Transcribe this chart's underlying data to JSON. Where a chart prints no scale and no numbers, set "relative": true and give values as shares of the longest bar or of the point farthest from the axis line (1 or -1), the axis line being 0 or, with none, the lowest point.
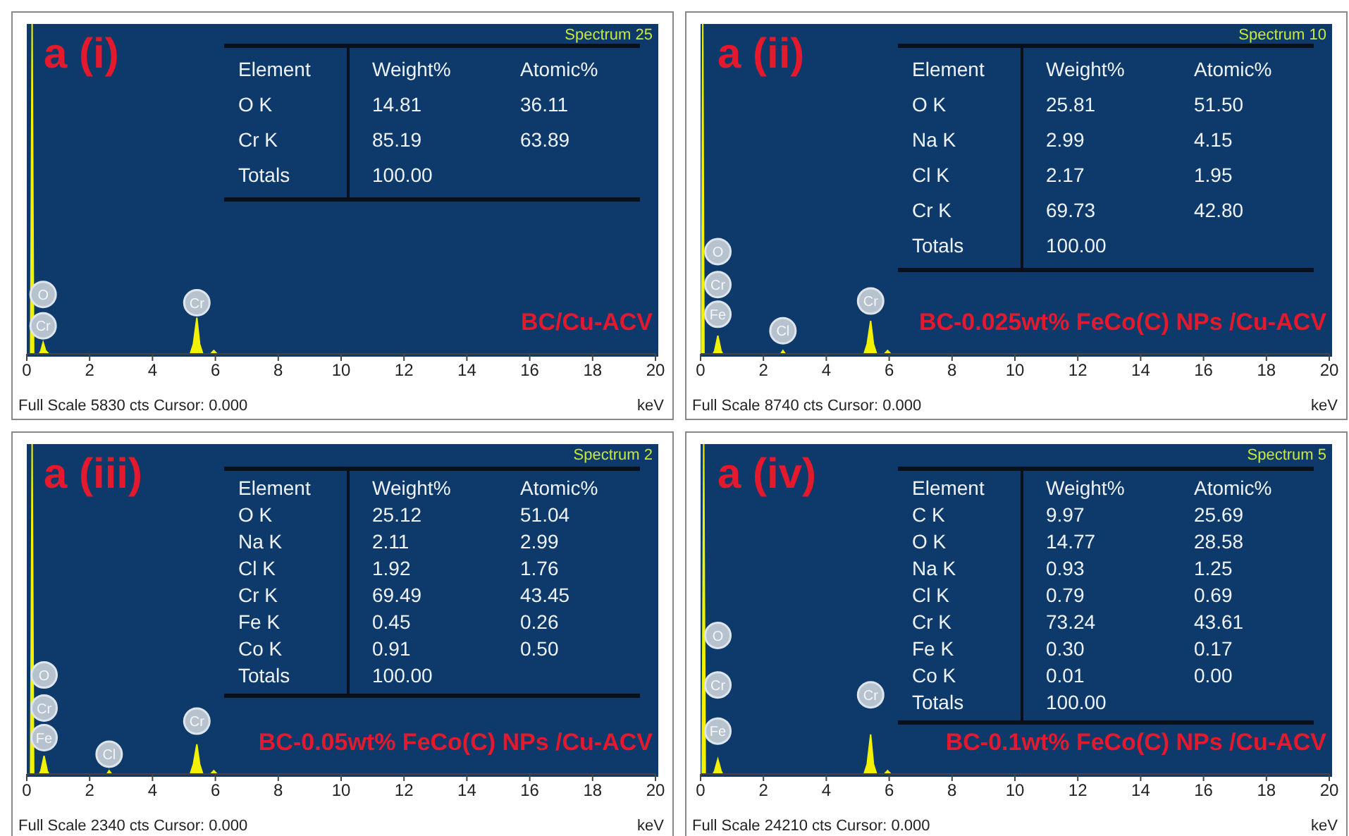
{
  "chart_data": [
    {
      "type": "area",
      "title": "a (i)",
      "xlabel": "keV",
      "relative": true,
      "color": "#f2f200",
      "xlim": [
        0,
        20
      ],
      "xticks": [
        0,
        2,
        4,
        6,
        8,
        10,
        12,
        14,
        16,
        18,
        20
      ],
      "x": [
        0,
        0.12,
        0.17,
        0.22,
        0.4,
        0.45,
        0.52,
        0.6,
        0.7,
        5.2,
        5.3,
        5.41,
        5.5,
        5.6,
        5.85,
        5.95,
        6.05,
        20
      ],
      "values": [
        0,
        0,
        1,
        0,
        0,
        0.01,
        0.035,
        0.01,
        0,
        0,
        0.03,
        0.11,
        0.03,
        0,
        0,
        0.01,
        0,
        0
      ],
      "annotations": [
        "Spectrum 25",
        "BC/Cu-ACV",
        "Full Scale 5830 cts Cursor: 0.000",
        {
          "text": "O",
          "x": 0.52,
          "y": 0.18
        },
        {
          "text": "Cr",
          "x": 0.52,
          "y": 0.085
        },
        {
          "text": "Cr",
          "x": 5.41,
          "y": 0.155
        },
        "Element",
        "Weight%",
        "Atomic%",
        "O K",
        "14.81",
        "36.11",
        "Cr K",
        "85.19",
        "63.89",
        "Totals",
        "100.00"
      ]
    },
    {
      "type": "area",
      "title": "a (ii)",
      "xlabel": "keV",
      "relative": true,
      "color": "#f2f200",
      "xlim": [
        0,
        20
      ],
      "xticks": [
        0,
        2,
        4,
        6,
        8,
        10,
        12,
        14,
        16,
        18,
        20
      ],
      "x": [
        0,
        0.03,
        0.07,
        0.11,
        0.4,
        0.45,
        0.55,
        0.65,
        0.7,
        2.55,
        2.62,
        2.7,
        5.2,
        5.3,
        5.41,
        5.5,
        5.6,
        5.85,
        5.95,
        6.05,
        20
      ],
      "values": [
        0,
        0,
        1,
        0,
        0,
        0.01,
        0.055,
        0.01,
        0,
        0,
        0.01,
        0,
        0,
        0.03,
        0.1,
        0.03,
        0,
        0,
        0.01,
        0,
        0
      ],
      "annotations": [
        "Spectrum 10",
        "BC-0.025wt% FeCo(C) NPs /Cu-ACV",
        "Full Scale 8740 cts Cursor: 0.000",
        {
          "text": "O",
          "x": 0.55,
          "y": 0.31
        },
        {
          "text": "Cr",
          "x": 0.55,
          "y": 0.21
        },
        {
          "text": "Fe",
          "x": 0.55,
          "y": 0.12
        },
        {
          "text": "Cl",
          "x": 2.62,
          "y": 0.07
        },
        {
          "text": "Cr",
          "x": 5.41,
          "y": 0.16
        },
        "Element",
        "Weight%",
        "Atomic%",
        "O K",
        "25.81",
        "51.50",
        "Na K",
        "2.99",
        "4.15",
        "Cl K",
        "2.17",
        "1.95",
        "Cr K",
        "69.73",
        "42.80",
        "Totals",
        "100.00"
      ]
    },
    {
      "type": "area",
      "title": "a (iii)",
      "xlabel": "keV",
      "relative": true,
      "color": "#f2f200",
      "xlim": [
        0,
        20
      ],
      "xticks": [
        0,
        2,
        4,
        6,
        8,
        10,
        12,
        14,
        16,
        18,
        20
      ],
      "x": [
        0,
        0.12,
        0.17,
        0.22,
        0.4,
        0.45,
        0.55,
        0.65,
        0.7,
        2.55,
        2.62,
        2.7,
        5.2,
        5.3,
        5.41,
        5.5,
        5.6,
        5.85,
        5.95,
        6.05,
        20
      ],
      "values": [
        0,
        0,
        1,
        0,
        0,
        0.01,
        0.055,
        0.01,
        0,
        0,
        0.01,
        0,
        0,
        0.03,
        0.09,
        0.03,
        0,
        0,
        0.01,
        0,
        0
      ],
      "annotations": [
        "Spectrum 2",
        "BC-0.05wt% FeCo(C) NPs /Cu-ACV",
        "Full Scale 2340 cts Cursor: 0.000",
        {
          "text": "O",
          "x": 0.55,
          "y": 0.3
        },
        {
          "text": "Cr",
          "x": 0.55,
          "y": 0.2
        },
        {
          "text": "Fe",
          "x": 0.55,
          "y": 0.11
        },
        {
          "text": "Cl",
          "x": 2.62,
          "y": 0.06
        },
        {
          "text": "Cr",
          "x": 5.41,
          "y": 0.16
        },
        "Element",
        "Weight%",
        "Atomic%",
        "O K",
        "25.12",
        "51.04",
        "Na K",
        "2.11",
        "2.99",
        "Cl K",
        "1.92",
        "1.76",
        "Cr K",
        "69.49",
        "43.45",
        "Fe K",
        "0.45",
        "0.26",
        "Co K",
        "0.91",
        "0.50",
        "Totals",
        "100.00"
      ]
    },
    {
      "type": "area",
      "title": "a (iv)",
      "xlabel": "keV",
      "relative": true,
      "color": "#f2f200",
      "xlim": [
        0,
        20
      ],
      "xticks": [
        0,
        2,
        4,
        6,
        8,
        10,
        12,
        14,
        16,
        18,
        20
      ],
      "x": [
        0,
        0.05,
        0.1,
        0.15,
        0.4,
        0.45,
        0.55,
        0.65,
        0.7,
        5.2,
        5.3,
        5.41,
        5.5,
        5.6,
        5.85,
        5.95,
        6.05,
        20
      ],
      "values": [
        0,
        0,
        1,
        0,
        0,
        0.01,
        0.045,
        0.01,
        0,
        0,
        0.03,
        0.12,
        0.03,
        0,
        0,
        0.01,
        0,
        0
      ],
      "annotations": [
        "Spectrum 5",
        "BC-0.1wt% FeCo(C) NPs /Cu-ACV",
        "Full Scale 24210 cts Cursor: 0.000",
        {
          "text": "O",
          "x": 0.55,
          "y": 0.42
        },
        {
          "text": "Cr",
          "x": 0.55,
          "y": 0.27
        },
        {
          "text": "Fe",
          "x": 0.55,
          "y": 0.13
        },
        {
          "text": "Cr",
          "x": 5.41,
          "y": 0.24
        },
        "Element",
        "Weight%",
        "Atomic%",
        "C K",
        "9.97",
        "25.69",
        "O K",
        "14.77",
        "28.58",
        "Na K",
        "0.93",
        "1.25",
        "Cl K",
        "0.79",
        "0.69",
        "Cr K",
        "73.24",
        "43.61",
        "Fe K",
        "0.30",
        "0.17",
        "Co K",
        "0.01",
        "0.00",
        "Totals",
        "100.00"
      ]
    }
  ]
}
